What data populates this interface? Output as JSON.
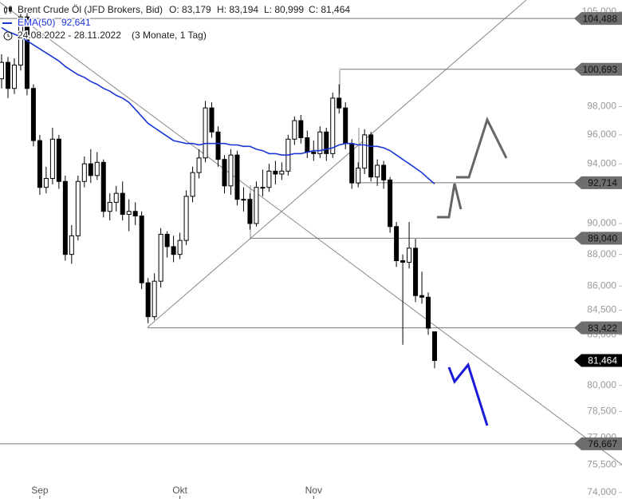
{
  "chart_data": {
    "type": "candlestick",
    "header": {
      "title": "Brent Crude Öl (JFD Brokers, Bid)",
      "open": "O: 83,179",
      "high": "H: 83,194",
      "low": "L: 80,999",
      "close": "C: 81,464",
      "period": "24.08.2022 - 28.11.2022",
      "span": "(3 Monate, 1 Tag)"
    },
    "categories": [
      null,
      null,
      null,
      null,
      null,
      null,
      "Sep",
      null,
      null,
      null,
      null,
      null,
      null,
      null,
      null,
      null,
      null,
      null,
      null,
      null,
      null,
      null,
      null,
      null,
      null,
      null,
      null,
      null,
      "Okt",
      null,
      null,
      null,
      null,
      null,
      null,
      null,
      null,
      null,
      null,
      null,
      null,
      null,
      null,
      null,
      null,
      null,
      null,
      null,
      null,
      "Nov",
      null,
      null,
      null,
      null,
      null,
      null,
      null,
      null,
      null,
      null,
      null,
      null,
      null,
      null,
      null,
      null,
      null,
      null,
      null
    ],
    "open": [
      100.0,
      101.2,
      99.3,
      101.0,
      104.6,
      99.3,
      95.6,
      92.4,
      93.0,
      95.7,
      92.8,
      88.0,
      89.2,
      92.8,
      94.0,
      93.2,
      94.1,
      90.8,
      91.4,
      92.0,
      90.6,
      90.8,
      90.5,
      86.2,
      84.1,
      86.3,
      89.3,
      88.5,
      88.0,
      88.9,
      91.8,
      93.4,
      94.4,
      97.9,
      96.2,
      94.3,
      92.5,
      94.6,
      91.6,
      91.6,
      90.0,
      92.4,
      92.4,
      93.5,
      93.3,
      93.5,
      95.7,
      97.0,
      95.8,
      94.8,
      94.7,
      96.2,
      94.7,
      98.6,
      97.9,
      95.4,
      92.7,
      93.7,
      96.0,
      93.1,
      93.9,
      92.9,
      89.8,
      87.6,
      87.5,
      88.4,
      85.4,
      85.3,
      83.179
    ],
    "high": [
      101.8,
      101.6,
      101.5,
      105.2,
      104.9,
      99.6,
      96.0,
      93.8,
      96.5,
      96.0,
      93.2,
      89.9,
      93.2,
      94.5,
      95.0,
      94.8,
      94.3,
      92.0,
      92.5,
      92.8,
      91.6,
      91.4,
      90.8,
      86.5,
      86.8,
      89.7,
      89.5,
      89.2,
      89.4,
      92.2,
      93.8,
      95.0,
      98.4,
      98.3,
      96.6,
      94.6,
      95.0,
      94.9,
      92.4,
      92.0,
      92.8,
      93.6,
      94.0,
      94.2,
      94.1,
      96.0,
      97.3,
      97.4,
      96.3,
      95.6,
      96.6,
      96.5,
      99.0,
      99.6,
      98.3,
      95.7,
      94.1,
      96.4,
      96.2,
      94.3,
      94.2,
      93.1,
      90.1,
      88.0,
      90.1,
      89.0,
      86.9,
      85.6,
      83.194
    ],
    "low": [
      99.3,
      98.6,
      98.9,
      100.6,
      98.8,
      95.2,
      91.9,
      92.0,
      92.6,
      92.3,
      87.6,
      87.4,
      88.9,
      92.4,
      92.7,
      92.9,
      90.4,
      90.2,
      90.8,
      90.2,
      89.5,
      89.9,
      85.8,
      83.7,
      83.9,
      85.9,
      87.8,
      87.5,
      87.7,
      88.6,
      91.4,
      93.0,
      94.1,
      95.8,
      93.8,
      92.0,
      91.9,
      91.2,
      90.8,
      89.6,
      89.8,
      91.8,
      92.1,
      92.6,
      92.9,
      93.2,
      95.3,
      95.4,
      94.4,
      94.2,
      94.4,
      94.2,
      94.4,
      97.5,
      95.0,
      92.3,
      92.4,
      93.3,
      92.8,
      92.5,
      92.3,
      89.4,
      87.2,
      82.4,
      87.1,
      85.0,
      84.9,
      83.0,
      80.999
    ],
    "close": [
      101.2,
      99.3,
      101.0,
      104.6,
      99.3,
      95.6,
      92.4,
      93.0,
      95.7,
      92.8,
      88.0,
      89.2,
      92.8,
      94.0,
      93.2,
      94.1,
      90.8,
      91.4,
      92.0,
      90.6,
      90.8,
      90.5,
      86.2,
      84.1,
      86.3,
      89.3,
      88.5,
      88.0,
      88.9,
      91.8,
      93.4,
      94.4,
      97.9,
      96.2,
      94.3,
      92.5,
      94.6,
      91.6,
      91.6,
      90.0,
      92.4,
      92.4,
      93.5,
      93.3,
      93.5,
      95.7,
      97.0,
      95.8,
      94.8,
      94.7,
      96.2,
      94.7,
      98.6,
      97.9,
      95.4,
      92.7,
      93.7,
      96.0,
      93.1,
      93.9,
      92.9,
      89.8,
      87.6,
      87.5,
      88.4,
      85.4,
      85.3,
      83.4,
      81.464
    ],
    "ema": {
      "name": "EMA(50)",
      "value_label": "92,641",
      "color": "#1a35d4",
      "values": [
        103.8,
        103.5,
        103.3,
        103.1,
        102.8,
        102.5,
        102.2,
        101.9,
        101.6,
        101.3,
        100.9,
        100.6,
        100.3,
        100.1,
        99.8,
        99.6,
        99.3,
        99.1,
        98.8,
        98.6,
        98.3,
        97.8,
        97.3,
        96.8,
        96.5,
        96.2,
        95.9,
        95.6,
        95.5,
        95.4,
        95.4,
        95.3,
        95.4,
        95.4,
        95.4,
        95.4,
        95.3,
        95.3,
        95.2,
        95.2,
        95.0,
        94.9,
        94.7,
        94.7,
        94.6,
        94.6,
        94.7,
        94.7,
        94.8,
        94.9,
        94.9,
        95.0,
        95.1,
        95.3,
        95.4,
        95.4,
        95.3,
        95.3,
        95.2,
        95.2,
        95.1,
        94.9,
        94.6,
        94.3,
        94.0,
        93.7,
        93.4,
        93.0,
        92.641
      ]
    },
    "levels": [
      {
        "value": 104.488,
        "label": "104,488"
      },
      {
        "value": 100.693,
        "label": "100,693"
      },
      {
        "value": 92.714,
        "label": "92,714"
      },
      {
        "value": 89.04,
        "label": "89,040"
      },
      {
        "value": 83.422,
        "label": "83,422"
      },
      {
        "value": 76.667,
        "label": "76,667"
      }
    ],
    "last_price": {
      "value": 81.464,
      "label": "81,464"
    },
    "log_scale": true,
    "ylim": [
      73.65,
      105.9
    ],
    "yticks": [
      {
        "value": 105,
        "label": "105,000"
      },
      {
        "value": 98,
        "label": "98,000"
      },
      {
        "value": 96,
        "label": "96,000"
      },
      {
        "value": 94,
        "label": "94,000"
      },
      {
        "value": 90,
        "label": "90,000"
      },
      {
        "value": 88,
        "label": "88,000"
      },
      {
        "value": 86,
        "label": "86,000"
      },
      {
        "value": 84.5,
        "label": "84,500"
      },
      {
        "value": 83,
        "label": "83,000"
      },
      {
        "value": 80,
        "label": "80,000"
      },
      {
        "value": 78.5,
        "label": "78,500"
      },
      {
        "value": 77,
        "label": "77,000"
      },
      {
        "value": 75.5,
        "label": "75,500"
      },
      {
        "value": 74,
        "label": "74,000"
      }
    ]
  }
}
